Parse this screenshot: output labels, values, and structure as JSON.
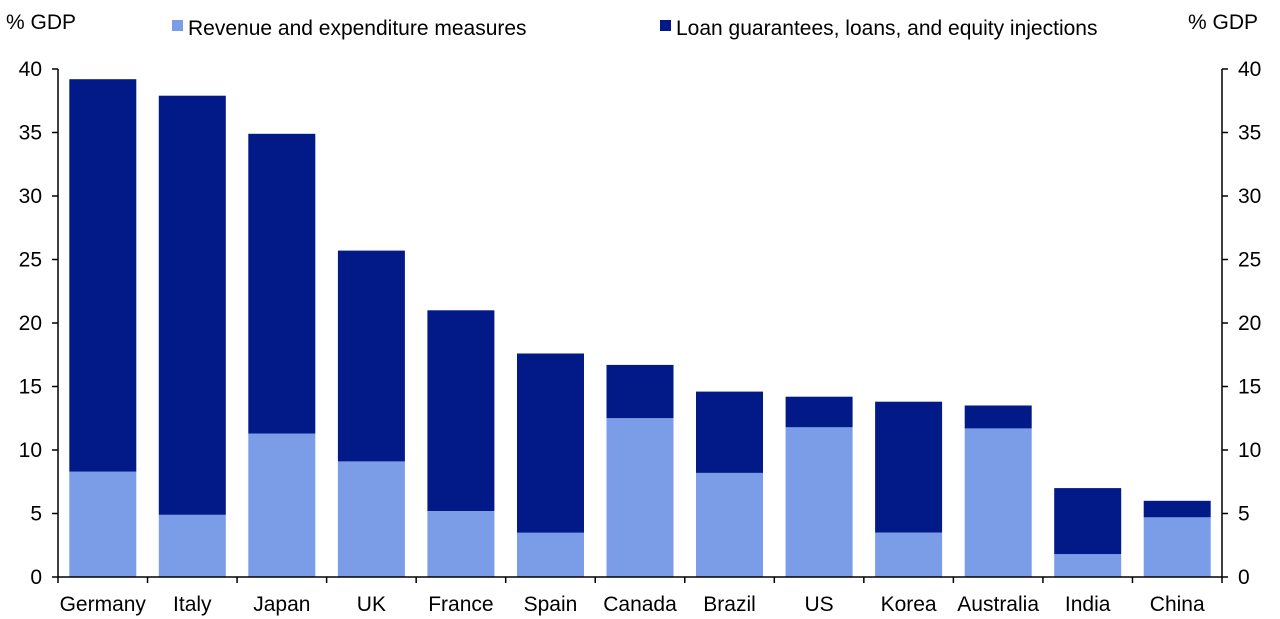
{
  "chart_data": {
    "type": "bar",
    "stacked": true,
    "categories": [
      "Germany",
      "Italy",
      "Japan",
      "UK",
      "France",
      "Spain",
      "Canada",
      "Brazil",
      "US",
      "Korea",
      "Australia",
      "India",
      "China"
    ],
    "series": [
      {
        "name": "Revenue and expenditure measures",
        "color": "#7b9de8",
        "values": [
          8.3,
          4.9,
          11.3,
          9.1,
          5.2,
          3.5,
          12.5,
          8.2,
          11.8,
          3.5,
          11.7,
          1.8,
          4.7
        ]
      },
      {
        "name": "Loan guarantees, loans, and equity injections",
        "color": "#021a88",
        "values": [
          30.9,
          33.0,
          23.6,
          16.6,
          15.8,
          14.1,
          4.2,
          6.4,
          2.4,
          10.3,
          1.8,
          5.2,
          1.3
        ]
      }
    ],
    "ylabel_left": "% GDP",
    "ylabel_right": "% GDP",
    "ylim": [
      0,
      40
    ],
    "yticks": [
      0,
      5,
      10,
      15,
      20,
      25,
      30,
      35,
      40
    ],
    "grid": false,
    "legend_position": "top"
  }
}
